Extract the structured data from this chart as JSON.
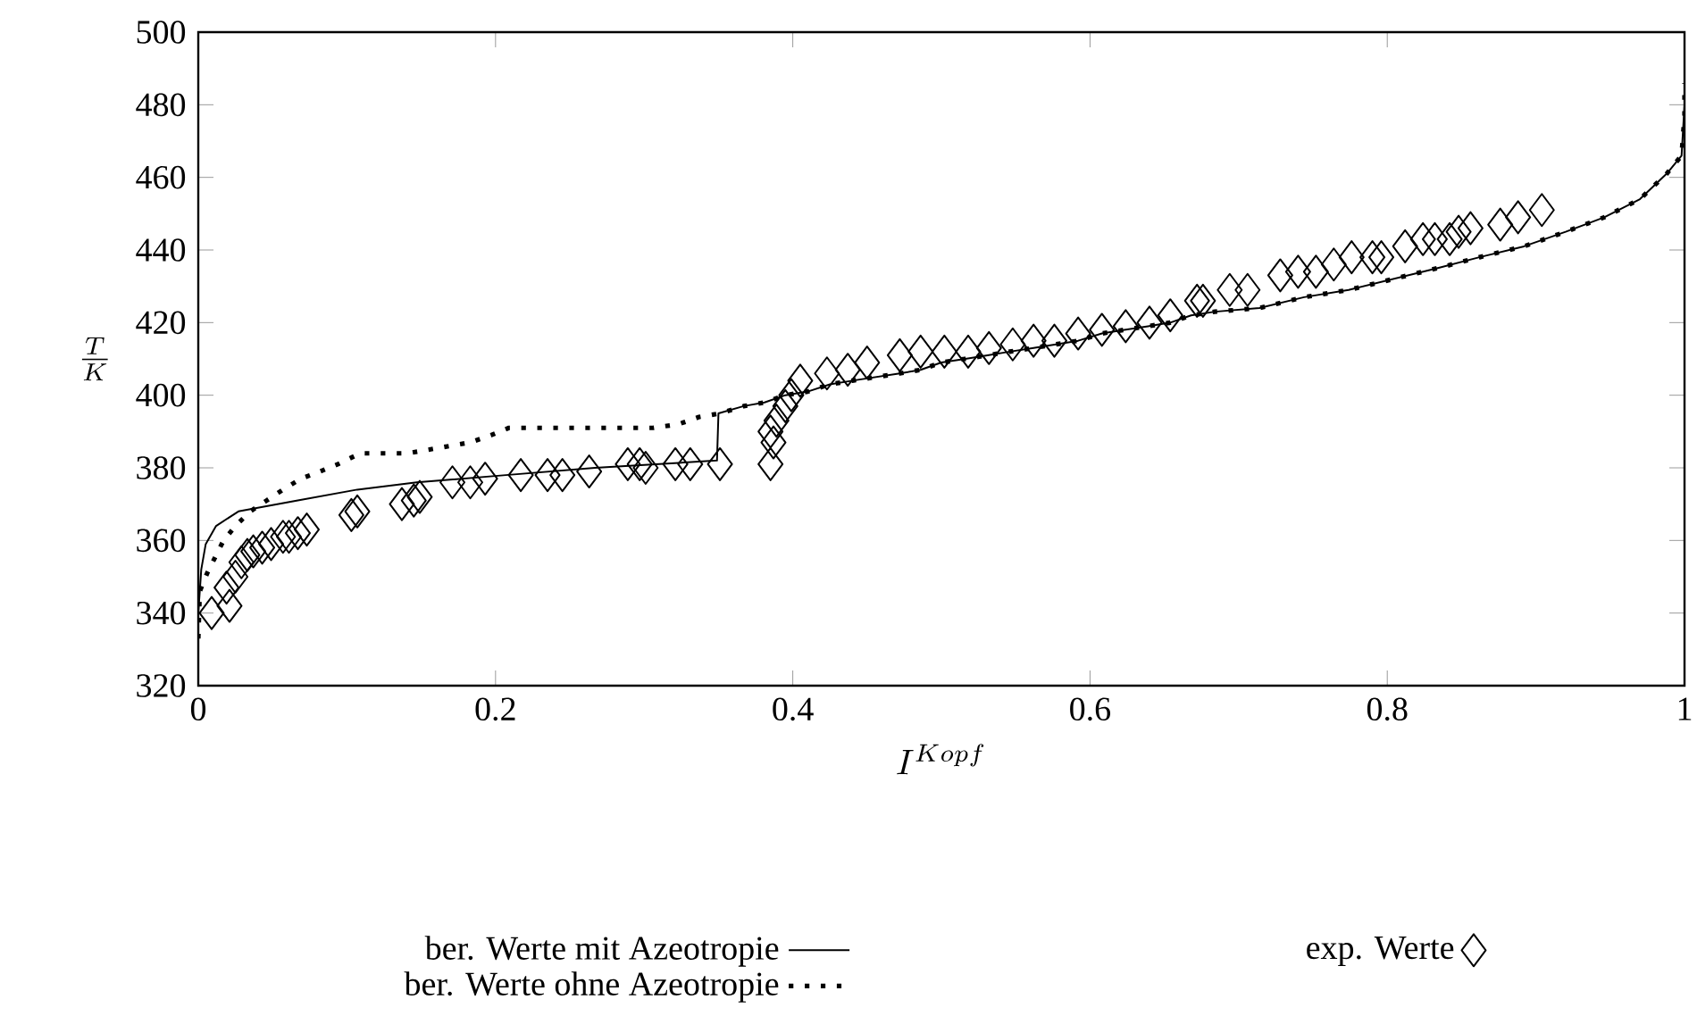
{
  "chart_data": {
    "type": "line",
    "xlabel": "I^{Kopf}",
    "ylabel": "\\frac{T}{K}",
    "xlim": [
      0,
      1
    ],
    "ylim": [
      320,
      500
    ],
    "xticks": [
      0,
      0.2,
      0.4,
      0.6,
      0.8,
      1
    ],
    "yticks": [
      320,
      340,
      360,
      380,
      400,
      420,
      440,
      460,
      480,
      500
    ],
    "legend": "bottom",
    "series": [
      {
        "name": "ber. Werte mit Azeotropie",
        "color": "#000000",
        "marker": "none",
        "line_style": "solid",
        "x": [
          0,
          0.002,
          0.005,
          0.012,
          0.027,
          0.067,
          0.107,
          0.147,
          0.207,
          0.267,
          0.349,
          0.35,
          0.367,
          0.381,
          0.395,
          0.41,
          0.425,
          0.44,
          0.456,
          0.472,
          0.486,
          0.5,
          0.516,
          0.531,
          0.546,
          0.562,
          0.577,
          0.592,
          0.608,
          0.623,
          0.639,
          0.654,
          0.668,
          0.684,
          0.714,
          0.744,
          0.774,
          0.804,
          0.834,
          0.862,
          0.892,
          0.92,
          0.946,
          0.97,
          0.988,
          0.998,
          1
        ],
        "values": [
          340,
          352,
          359,
          364,
          368,
          371,
          374,
          376,
          378,
          380,
          382,
          395,
          397,
          398,
          400,
          401,
          403,
          404,
          405,
          406,
          407,
          409,
          410,
          411,
          412,
          413,
          414,
          415,
          417,
          418,
          419,
          420,
          422,
          423,
          424,
          427,
          429,
          432,
          435,
          438,
          441,
          445,
          449,
          454,
          461,
          466,
          480
        ]
      },
      {
        "name": "ber. Werte ohne Azeotropie",
        "color": "#000000",
        "marker": "none",
        "line_style": "dotted",
        "x": [
          0,
          0.001,
          0.006,
          0.017,
          0.025,
          0.035,
          0.046,
          0.057,
          0.069,
          0.082,
          0.094,
          0.109,
          0.125,
          0.141,
          0.169,
          0.183,
          0.197,
          0.209,
          0.226,
          0.242,
          0.258,
          0.274,
          0.29,
          0.306,
          0.323,
          0.337,
          0.351,
          0.367,
          0.381,
          0.395,
          0.41,
          0.425,
          0.44,
          0.456,
          0.472,
          0.486,
          0.5,
          0.516,
          0.531,
          0.546,
          0.562,
          0.577,
          0.592,
          0.608,
          0.623,
          0.639,
          0.654,
          0.668,
          0.684,
          0.714,
          0.744,
          0.774,
          0.804,
          0.834,
          0.862,
          0.892,
          0.92,
          0.946,
          0.97,
          0.988,
          0.998,
          1,
          1
        ],
        "values": [
          333,
          346,
          351,
          360,
          364,
          368,
          371,
          374,
          377,
          379,
          381,
          384,
          384,
          384,
          386,
          387,
          389,
          391,
          391,
          391,
          391,
          391,
          391,
          391,
          392,
          394,
          395,
          397,
          398,
          400,
          401,
          403,
          404,
          405,
          406,
          407,
          409,
          410,
          411,
          412,
          413,
          414,
          415,
          417,
          418,
          419,
          420,
          422,
          423,
          424,
          427,
          429,
          432,
          435,
          438,
          441,
          445,
          449,
          454,
          461,
          466,
          477,
          486
        ]
      },
      {
        "name": "exp. Werte",
        "type": "scatter",
        "color": "#000000",
        "marker": "diamond",
        "x": [
          0.009,
          0.021,
          0.019,
          0.025,
          0.029,
          0.033,
          0.037,
          0.043,
          0.049,
          0.057,
          0.061,
          0.067,
          0.073,
          0.103,
          0.107,
          0.137,
          0.145,
          0.149,
          0.171,
          0.183,
          0.193,
          0.217,
          0.235,
          0.245,
          0.263,
          0.289,
          0.297,
          0.301,
          0.321,
          0.331,
          0.351,
          0.385,
          0.387,
          0.385,
          0.389,
          0.395,
          0.399,
          0.405,
          0.423,
          0.437,
          0.45,
          0.472,
          0.486,
          0.502,
          0.518,
          0.532,
          0.548,
          0.562,
          0.576,
          0.592,
          0.608,
          0.624,
          0.64,
          0.654,
          0.672,
          0.676,
          0.694,
          0.706,
          0.728,
          0.74,
          0.752,
          0.764,
          0.776,
          0.79,
          0.796,
          0.812,
          0.824,
          0.832,
          0.842,
          0.848,
          0.856,
          0.876,
          0.888,
          0.904
        ],
        "values": [
          340,
          342,
          347,
          350,
          354,
          356,
          357,
          358,
          359,
          361,
          361,
          362,
          363,
          367,
          368,
          370,
          371,
          372,
          376,
          376,
          377,
          378,
          378,
          378,
          379,
          381,
          381,
          380,
          381,
          381,
          381,
          381,
          387,
          390,
          393,
          397,
          400,
          404,
          406,
          407,
          409,
          411,
          412,
          412,
          412,
          413,
          414,
          415,
          415,
          417,
          418,
          419,
          420,
          422,
          426,
          426,
          429,
          429,
          433,
          434,
          434,
          436,
          438,
          438,
          438,
          441,
          443,
          443,
          443,
          445,
          446,
          447,
          449,
          451
        ]
      }
    ]
  }
}
